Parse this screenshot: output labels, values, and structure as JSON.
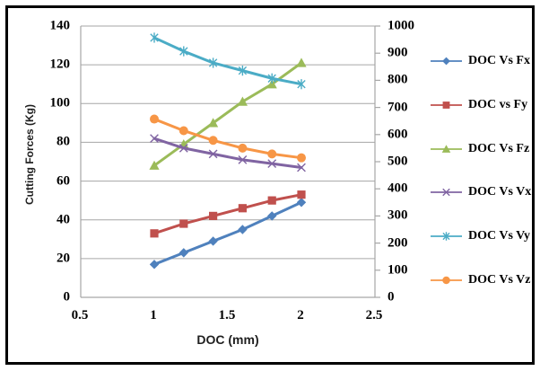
{
  "chart_data": {
    "type": "line",
    "title": "",
    "xlabel": "DOC (mm)",
    "ylabel": "Cutting Forces (Kg)",
    "xlim": [
      0.5,
      2.5
    ],
    "xticks": [
      0.5,
      1,
      1.5,
      2,
      2.5
    ],
    "ylim": [
      0,
      140
    ],
    "yticks": [
      0,
      20,
      40,
      60,
      80,
      100,
      120,
      140
    ],
    "y2lim": [
      0,
      1000
    ],
    "y2ticks": [
      0,
      100,
      200,
      300,
      400,
      500,
      600,
      700,
      800,
      900,
      1000
    ],
    "grid": "horizontal",
    "legend_position": "right",
    "x": [
      1,
      1.2,
      1.4,
      1.6,
      1.8,
      2
    ],
    "series": [
      {
        "name": "DOC Vs Fx",
        "color": "#4F81BD",
        "marker": "diamond",
        "axis": "left",
        "values": [
          17,
          23,
          29,
          35,
          42,
          49
        ]
      },
      {
        "name": "DOC vs Fy",
        "color": "#C0504D",
        "marker": "square",
        "axis": "left",
        "values": [
          33,
          38,
          42,
          46,
          50,
          53
        ]
      },
      {
        "name": "DOC Vs Fz",
        "color": "#9BBB59",
        "marker": "triangle",
        "axis": "left",
        "values": [
          68,
          79,
          90,
          101,
          110,
          121
        ]
      },
      {
        "name": "DOC Vs Vx",
        "color": "#8064A2",
        "marker": "x",
        "axis": "left",
        "values": [
          82,
          77,
          74,
          71,
          69,
          67
        ]
      },
      {
        "name": "DOC Vs Vy",
        "color": "#4BACC6",
        "marker": "asterisk",
        "axis": "left",
        "values": [
          134,
          127,
          121,
          117,
          113,
          110
        ]
      },
      {
        "name": "DOC Vs Vz",
        "color": "#F79646",
        "marker": "circle",
        "axis": "left",
        "values": [
          92,
          86,
          81,
          77,
          74,
          72
        ]
      }
    ],
    "colors": {
      "gridline": "#A6A6A6",
      "axis_line": "#A6A6A6",
      "tick_text": "#000000",
      "axis_title_text": "#1F1F1F",
      "frame_border": "#000000",
      "background": "#FFFFFF"
    }
  }
}
